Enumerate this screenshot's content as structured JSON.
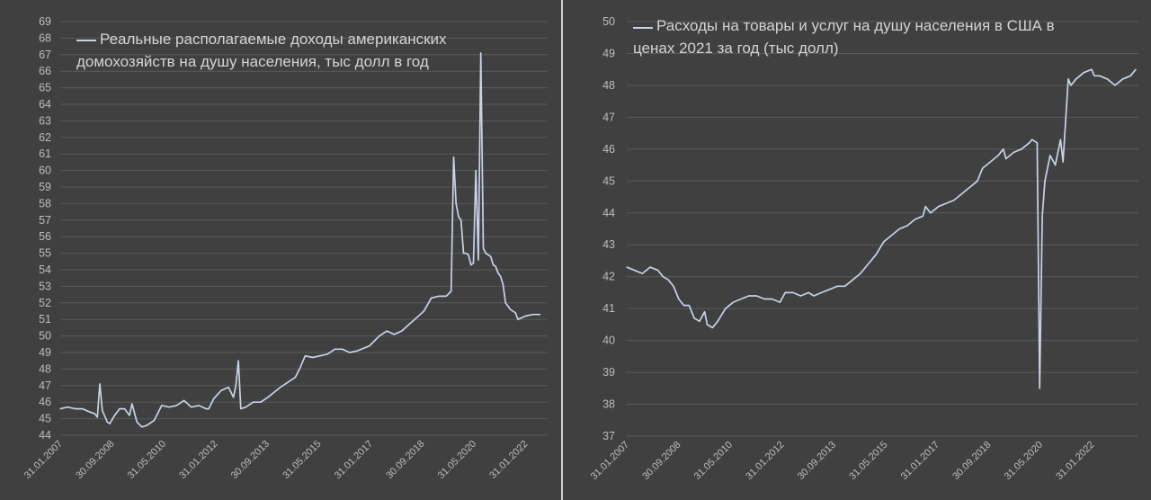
{
  "colors": {
    "background": "#404040",
    "grid": "#5a5a5a",
    "line": "#c7d3e6",
    "text": "#bdbdbd"
  },
  "chart_data": [
    {
      "type": "line",
      "legend": [
        "Реальные располагаемые доходы американских",
        "домохозяйств на душу населения, тыс долл в год"
      ],
      "series_name": "Реальные располагаемые доходы американских домохозяйств на душу населения, тыс долл в год",
      "grid": true,
      "legend_position": "top-left",
      "ylim": [
        44,
        69
      ],
      "yticks": [
        44,
        45,
        46,
        47,
        48,
        49,
        50,
        51,
        52,
        53,
        54,
        55,
        56,
        57,
        58,
        59,
        60,
        61,
        62,
        63,
        64,
        65,
        66,
        67,
        68,
        69
      ],
      "xtick_labels": [
        "31.01.2007",
        "30.09.2008",
        "31.05.2010",
        "31.01.2012",
        "30.09.2013",
        "31.05.2015",
        "31.01.2017",
        "30.09.2018",
        "31.05.2020",
        "31.01.2022"
      ],
      "x_range": [
        "2007-01",
        "2023-06"
      ],
      "points": [
        [
          "2007-01",
          45.6
        ],
        [
          "2007-04",
          45.7
        ],
        [
          "2007-07",
          45.6
        ],
        [
          "2007-10",
          45.6
        ],
        [
          "2008-01",
          45.4
        ],
        [
          "2008-03",
          45.3
        ],
        [
          "2008-04",
          45.1
        ],
        [
          "2008-05",
          47.1
        ],
        [
          "2008-06",
          45.5
        ],
        [
          "2008-08",
          44.8
        ],
        [
          "2008-09",
          44.7
        ],
        [
          "2008-11",
          45.2
        ],
        [
          "2009-01",
          45.6
        ],
        [
          "2009-03",
          45.6
        ],
        [
          "2009-05",
          45.2
        ],
        [
          "2009-06",
          45.9
        ],
        [
          "2009-08",
          44.8
        ],
        [
          "2009-10",
          44.5
        ],
        [
          "2009-12",
          44.6
        ],
        [
          "2010-03",
          44.9
        ],
        [
          "2010-06",
          45.8
        ],
        [
          "2010-09",
          45.7
        ],
        [
          "2010-12",
          45.8
        ],
        [
          "2011-03",
          46.1
        ],
        [
          "2011-06",
          45.7
        ],
        [
          "2011-09",
          45.8
        ],
        [
          "2011-12",
          45.6
        ],
        [
          "2012-01",
          45.6
        ],
        [
          "2012-03",
          46.2
        ],
        [
          "2012-06",
          46.7
        ],
        [
          "2012-09",
          46.9
        ],
        [
          "2012-11",
          46.3
        ],
        [
          "2012-12",
          47.0
        ],
        [
          "2013-01",
          48.5
        ],
        [
          "2013-02",
          45.6
        ],
        [
          "2013-04",
          45.7
        ],
        [
          "2013-07",
          46.0
        ],
        [
          "2013-10",
          46.0
        ],
        [
          "2014-01",
          46.3
        ],
        [
          "2014-06",
          46.9
        ],
        [
          "2014-12",
          47.5
        ],
        [
          "2015-02",
          48.1
        ],
        [
          "2015-04",
          48.8
        ],
        [
          "2015-07",
          48.7
        ],
        [
          "2015-10",
          48.8
        ],
        [
          "2016-01",
          48.9
        ],
        [
          "2016-04",
          49.2
        ],
        [
          "2016-07",
          49.2
        ],
        [
          "2016-10",
          49.0
        ],
        [
          "2017-01",
          49.1
        ],
        [
          "2017-06",
          49.4
        ],
        [
          "2017-10",
          50.0
        ],
        [
          "2018-01",
          50.3
        ],
        [
          "2018-04",
          50.1
        ],
        [
          "2018-07",
          50.3
        ],
        [
          "2018-10",
          50.7
        ],
        [
          "2019-01",
          51.1
        ],
        [
          "2019-04",
          51.5
        ],
        [
          "2019-07",
          52.3
        ],
        [
          "2019-10",
          52.4
        ],
        [
          "2020-01",
          52.4
        ],
        [
          "2020-03",
          52.7
        ],
        [
          "2020-04",
          60.8
        ],
        [
          "2020-05",
          58.0
        ],
        [
          "2020-06",
          57.2
        ],
        [
          "2020-07",
          57.0
        ],
        [
          "2020-08",
          55.0
        ],
        [
          "2020-09",
          55.0
        ],
        [
          "2020-10",
          54.9
        ],
        [
          "2020-11",
          54.3
        ],
        [
          "2020-12",
          54.4
        ],
        [
          "2021-01",
          60.0
        ],
        [
          "2021-02",
          54.6
        ],
        [
          "2021-03",
          67.1
        ],
        [
          "2021-04",
          55.3
        ],
        [
          "2021-05",
          55.0
        ],
        [
          "2021-06",
          54.9
        ],
        [
          "2021-07",
          54.8
        ],
        [
          "2021-08",
          54.3
        ],
        [
          "2021-09",
          54.2
        ],
        [
          "2021-10",
          53.8
        ],
        [
          "2021-11",
          53.6
        ],
        [
          "2021-12",
          53.1
        ],
        [
          "2022-01",
          52.0
        ],
        [
          "2022-03",
          51.6
        ],
        [
          "2022-05",
          51.4
        ],
        [
          "2022-06",
          51.0
        ],
        [
          "2022-09",
          51.2
        ],
        [
          "2022-12",
          51.3
        ],
        [
          "2023-03",
          51.3
        ]
      ]
    },
    {
      "type": "line",
      "legend": [
        "Расходы на товары и услуг на душу населения в США в",
        "ценах 2021 за год (тыс долл)"
      ],
      "series_name": "Расходы на товары и услуг на душу населения в США в ценах 2021 за год (тыс долл)",
      "grid": true,
      "legend_position": "top-left",
      "ylim": [
        37,
        50
      ],
      "yticks": [
        37,
        38,
        39,
        40,
        41,
        42,
        43,
        44,
        45,
        46,
        47,
        48,
        49,
        50
      ],
      "xtick_labels": [
        "31.01.2007",
        "30.09.2008",
        "31.05.2010",
        "31.01.2012",
        "30.09.2013",
        "31.05.2015",
        "31.01.2017",
        "30.09.2018",
        "31.05.2020",
        "31.01.2022"
      ],
      "x_range": [
        "2007-01",
        "2023-06"
      ],
      "points": [
        [
          "2007-01",
          42.3
        ],
        [
          "2007-04",
          42.2
        ],
        [
          "2007-07",
          42.1
        ],
        [
          "2007-10",
          42.3
        ],
        [
          "2008-01",
          42.2
        ],
        [
          "2008-03",
          42.0
        ],
        [
          "2008-05",
          41.9
        ],
        [
          "2008-07",
          41.7
        ],
        [
          "2008-09",
          41.3
        ],
        [
          "2008-11",
          41.1
        ],
        [
          "2009-01",
          41.1
        ],
        [
          "2009-03",
          40.7
        ],
        [
          "2009-05",
          40.6
        ],
        [
          "2009-07",
          40.9
        ],
        [
          "2009-08",
          40.5
        ],
        [
          "2009-10",
          40.4
        ],
        [
          "2009-12",
          40.6
        ],
        [
          "2010-03",
          41.0
        ],
        [
          "2010-06",
          41.2
        ],
        [
          "2010-09",
          41.3
        ],
        [
          "2010-12",
          41.4
        ],
        [
          "2011-03",
          41.4
        ],
        [
          "2011-06",
          41.3
        ],
        [
          "2011-09",
          41.3
        ],
        [
          "2011-12",
          41.2
        ],
        [
          "2012-02",
          41.5
        ],
        [
          "2012-05",
          41.5
        ],
        [
          "2012-08",
          41.4
        ],
        [
          "2012-11",
          41.5
        ],
        [
          "2013-01",
          41.4
        ],
        [
          "2013-04",
          41.5
        ],
        [
          "2013-07",
          41.6
        ],
        [
          "2013-10",
          41.7
        ],
        [
          "2014-01",
          41.7
        ],
        [
          "2014-04",
          41.9
        ],
        [
          "2014-07",
          42.1
        ],
        [
          "2014-10",
          42.4
        ],
        [
          "2015-01",
          42.7
        ],
        [
          "2015-04",
          43.1
        ],
        [
          "2015-07",
          43.3
        ],
        [
          "2015-10",
          43.5
        ],
        [
          "2016-01",
          43.6
        ],
        [
          "2016-04",
          43.8
        ],
        [
          "2016-07",
          43.9
        ],
        [
          "2016-08",
          44.2
        ],
        [
          "2016-10",
          44.0
        ],
        [
          "2017-01",
          44.2
        ],
        [
          "2017-04",
          44.3
        ],
        [
          "2017-07",
          44.4
        ],
        [
          "2017-10",
          44.6
        ],
        [
          "2018-01",
          44.8
        ],
        [
          "2018-04",
          45.0
        ],
        [
          "2018-06",
          45.4
        ],
        [
          "2018-09",
          45.6
        ],
        [
          "2018-12",
          45.8
        ],
        [
          "2019-02",
          46.0
        ],
        [
          "2019-03",
          45.7
        ],
        [
          "2019-06",
          45.9
        ],
        [
          "2019-09",
          46.0
        ],
        [
          "2019-12",
          46.2
        ],
        [
          "2020-01",
          46.3
        ],
        [
          "2020-03",
          46.2
        ],
        [
          "2020-04",
          38.5
        ],
        [
          "2020-05",
          43.9
        ],
        [
          "2020-06",
          45.0
        ],
        [
          "2020-08",
          45.8
        ],
        [
          "2020-10",
          45.5
        ],
        [
          "2020-12",
          46.3
        ],
        [
          "2021-01",
          45.6
        ],
        [
          "2021-03",
          48.2
        ],
        [
          "2021-04",
          48.0
        ],
        [
          "2021-06",
          48.2
        ],
        [
          "2021-09",
          48.4
        ],
        [
          "2021-12",
          48.5
        ],
        [
          "2022-01",
          48.3
        ],
        [
          "2022-03",
          48.3
        ],
        [
          "2022-06",
          48.2
        ],
        [
          "2022-09",
          48.0
        ],
        [
          "2022-12",
          48.2
        ],
        [
          "2023-03",
          48.3
        ],
        [
          "2023-05",
          48.5
        ]
      ]
    }
  ]
}
